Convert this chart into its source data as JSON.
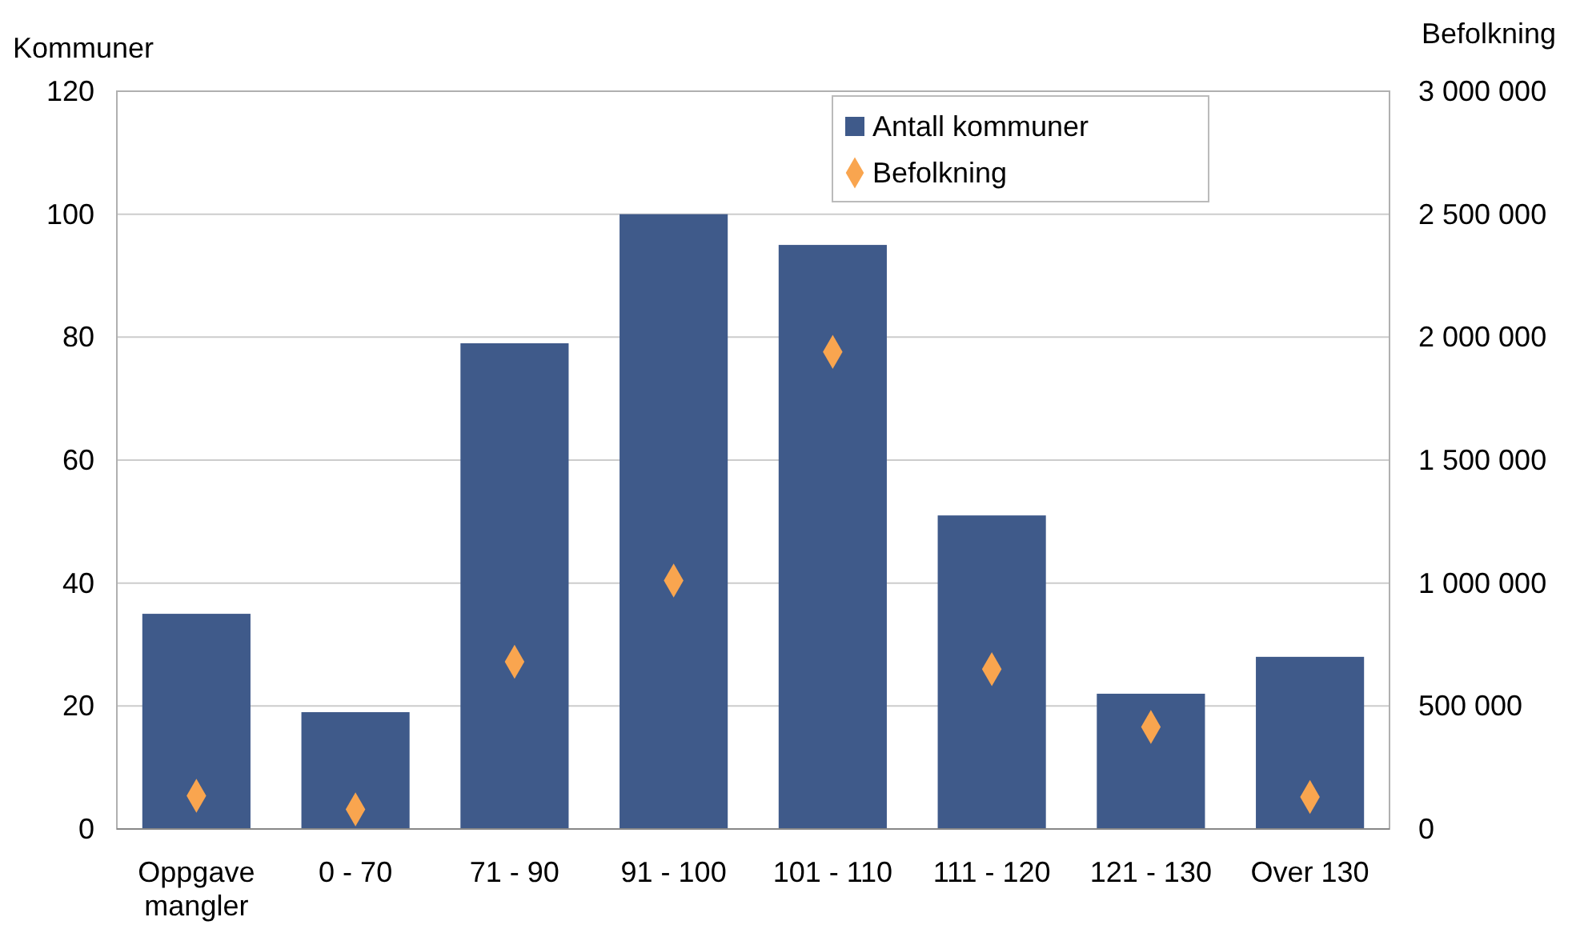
{
  "chart_data": {
    "type": "bar",
    "ylabel": "Kommuner",
    "y2label": "Befolkning",
    "categories": [
      "Oppgave mangler",
      "0 - 70",
      "71 - 90",
      "91 - 100",
      "101 - 110",
      "111 - 120",
      "121 - 130",
      "Over 130"
    ],
    "series": [
      {
        "name": "Antall kommuner",
        "color": "#3f5a8a",
        "values": [
          35,
          19,
          79,
          100,
          95,
          51,
          22,
          28
        ]
      },
      {
        "name": "Befolkning",
        "type": "scatter",
        "axis": "y2",
        "marker": "diamond",
        "color": "#f9a54f",
        "values": [
          135000,
          80000,
          680000,
          1010000,
          1940000,
          650000,
          415000,
          130000
        ]
      }
    ],
    "ylim": [
      0,
      120
    ],
    "yticks": [
      0,
      20,
      40,
      60,
      80,
      100,
      120
    ],
    "y2lim": [
      0,
      3000000
    ],
    "y2ticks": [
      0,
      {
        "value": 500000,
        "label": "500 000"
      },
      {
        "value": 1000000,
        "label": "1 000 000"
      },
      {
        "value": 1500000,
        "label": "1 500 000"
      },
      {
        "value": 2000000,
        "label": "2 000 000"
      },
      {
        "value": 2500000,
        "label": "2 500 000"
      },
      {
        "value": 3000000,
        "label": "3 000 000"
      }
    ],
    "grid": "y",
    "legend": "top right"
  }
}
